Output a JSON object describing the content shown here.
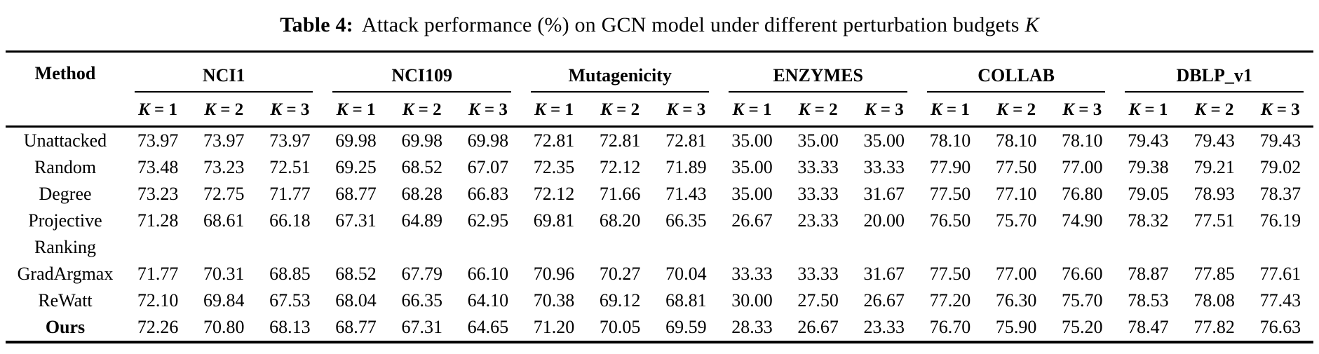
{
  "caption": {
    "label": "Table 4:",
    "text": "Attack performance (%) on GCN model under different perturbation budgets",
    "symbol": "K"
  },
  "table": {
    "method_header": "Method",
    "groups": [
      "NCI1",
      "NCI109",
      "Mutagenicity",
      "ENZYMES",
      "COLLAB",
      "DBLP_v1"
    ],
    "k_headers": [
      "K = 1",
      "K = 2",
      "K = 3"
    ],
    "rows": [
      {
        "method": "Unattacked",
        "bold": false,
        "values": [
          "73.97",
          "73.97",
          "73.97",
          "69.98",
          "69.98",
          "69.98",
          "72.81",
          "72.81",
          "72.81",
          "35.00",
          "35.00",
          "35.00",
          "78.10",
          "78.10",
          "78.10",
          "79.43",
          "79.43",
          "79.43"
        ]
      },
      {
        "method": "Random",
        "bold": false,
        "values": [
          "73.48",
          "73.23",
          "72.51",
          "69.25",
          "68.52",
          "67.07",
          "72.35",
          "72.12",
          "71.89",
          "35.00",
          "33.33",
          "33.33",
          "77.90",
          "77.50",
          "77.00",
          "79.38",
          "79.21",
          "79.02"
        ]
      },
      {
        "method": "Degree",
        "bold": false,
        "values": [
          "73.23",
          "72.75",
          "71.77",
          "68.77",
          "68.28",
          "66.83",
          "72.12",
          "71.66",
          "71.43",
          "35.00",
          "33.33",
          "31.67",
          "77.50",
          "77.10",
          "76.80",
          "79.05",
          "78.93",
          "78.37"
        ]
      },
      {
        "method": "Projective",
        "bold": false,
        "values": [
          "71.28",
          "68.61",
          "66.18",
          "67.31",
          "64.89",
          "62.95",
          "69.81",
          "68.20",
          "66.35",
          "26.67",
          "23.33",
          "20.00",
          "76.50",
          "75.70",
          "74.90",
          "78.32",
          "77.51",
          "76.19"
        ]
      },
      {
        "method": "Ranking",
        "bold": false,
        "values": []
      },
      {
        "method": "GradArgmax",
        "bold": false,
        "values": [
          "71.77",
          "70.31",
          "68.85",
          "68.52",
          "67.79",
          "66.10",
          "70.96",
          "70.27",
          "70.04",
          "33.33",
          "33.33",
          "31.67",
          "77.50",
          "77.00",
          "76.60",
          "78.87",
          "77.85",
          "77.61"
        ]
      },
      {
        "method": "ReWatt",
        "bold": false,
        "values": [
          "72.10",
          "69.84",
          "67.53",
          "68.04",
          "66.35",
          "64.10",
          "70.38",
          "69.12",
          "68.81",
          "30.00",
          "27.50",
          "26.67",
          "77.20",
          "76.30",
          "75.70",
          "78.53",
          "78.08",
          "77.43"
        ]
      },
      {
        "method": "Ours",
        "bold": true,
        "values": [
          "72.26",
          "70.80",
          "68.13",
          "68.77",
          "67.31",
          "64.65",
          "71.20",
          "70.05",
          "69.59",
          "28.33",
          "26.67",
          "23.33",
          "76.70",
          "75.90",
          "75.20",
          "78.47",
          "77.82",
          "76.63"
        ]
      }
    ]
  }
}
